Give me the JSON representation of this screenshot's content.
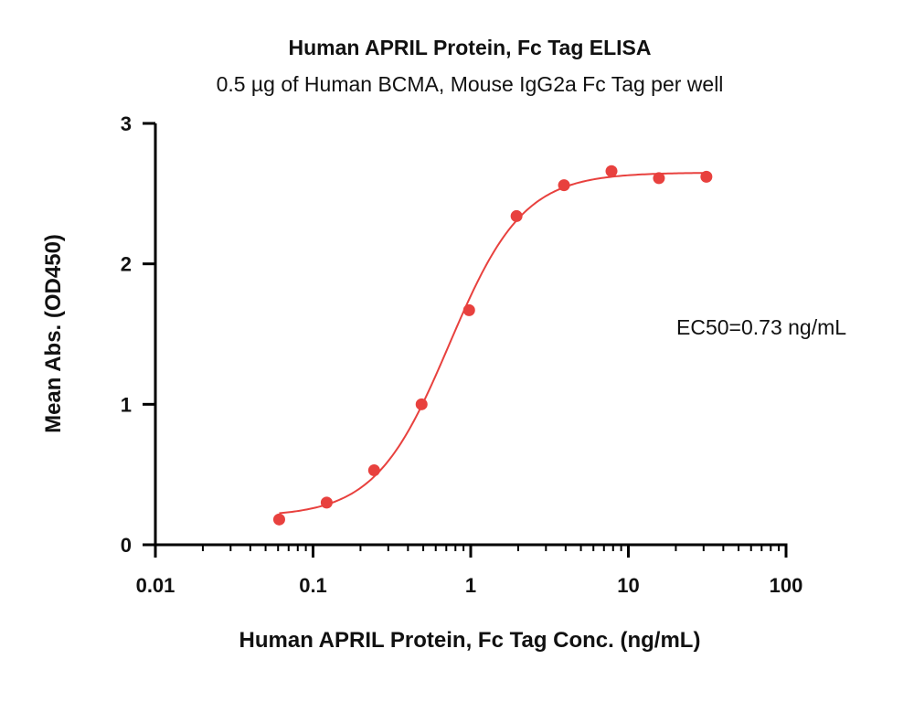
{
  "chart_data": {
    "type": "scatter",
    "title": "Human APRIL Protein, Fc Tag ELISA",
    "subtitle": "0.5 µg of Human BCMA, Mouse IgG2a Fc Tag per well",
    "xlabel": "Human APRIL Protein, Fc Tag Conc. (ng/mL)",
    "ylabel": "Mean Abs. (OD450)",
    "x_scale": "log",
    "xlim": [
      0.01,
      100
    ],
    "ylim": [
      0,
      3
    ],
    "x_ticks": [
      "0.01",
      "0.1",
      "1",
      "10",
      "100"
    ],
    "y_ticks": [
      "0",
      "1",
      "2",
      "3"
    ],
    "grid": false,
    "annotation": "EC50=0.73 ng/mL",
    "color": "#e8413e",
    "series": [
      {
        "x": [
          0.061,
          0.122,
          0.244,
          0.488,
          0.977,
          1.953,
          3.906,
          7.813,
          15.625,
          31.25
        ],
        "y": [
          0.18,
          0.3,
          0.53,
          1.0,
          1.67,
          2.34,
          2.56,
          2.66,
          2.61,
          2.62
        ]
      }
    ],
    "fit": {
      "bottom": 0.2,
      "top": 2.65,
      "ec50": 0.73,
      "hill": 1.85
    }
  }
}
